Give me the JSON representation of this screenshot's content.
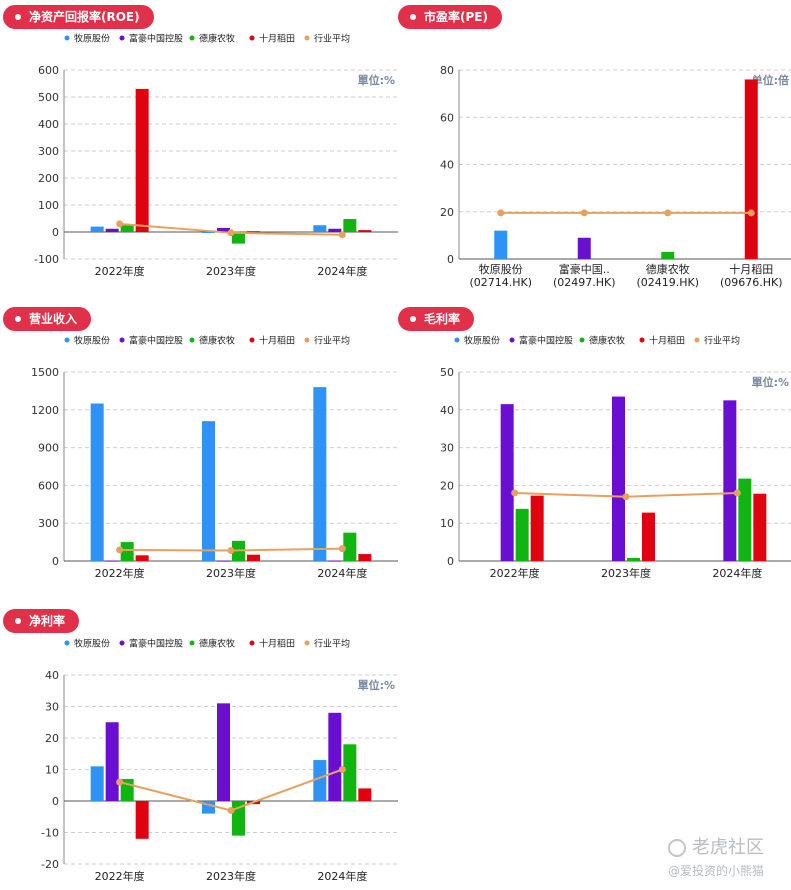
{
  "legend_items": [
    {
      "label": "牧原股份",
      "color": "#2e93f5"
    },
    {
      "label": "富豪中国控股",
      "color": "#6a0fd2"
    },
    {
      "label": "德康农牧",
      "color": "#11b511"
    },
    {
      "label": "十月稻田",
      "color": "#e0030f"
    },
    {
      "label": "行业平均",
      "color": "#e8a05e"
    }
  ],
  "unit_percent": "單位:%",
  "unit_times": "单位:倍",
  "watermark": {
    "brand": "老虎社区",
    "user": "@爱投资的小熊猫"
  },
  "chart_data": [
    {
      "id": "roe",
      "type": "bar",
      "title": "净资产回报率(ROE)",
      "categories": [
        "2022年度",
        "2023年度",
        "2024年度"
      ],
      "series": [
        {
          "name": "牧原股份",
          "values": [
            20,
            -2,
            25
          ]
        },
        {
          "name": "富豪中国控股",
          "values": [
            12,
            15,
            12
          ]
        },
        {
          "name": "德康农牧",
          "values": [
            25,
            -43,
            48
          ]
        },
        {
          "name": "十月稻田",
          "values": [
            530,
            3,
            7
          ]
        }
      ],
      "average": {
        "name": "行业平均",
        "values": [
          30,
          -3,
          -10
        ]
      },
      "ylim": [
        -100,
        600
      ],
      "yticks": [
        -100,
        0,
        100,
        200,
        300,
        400,
        500,
        600
      ],
      "unit": "單位:%",
      "legend": "top"
    },
    {
      "id": "pe",
      "type": "bar",
      "title": "市盈率(PE)",
      "categories": [
        {
          "name": "牧原股份",
          "code": "(02714.HK)"
        },
        {
          "name": "富豪中国..",
          "code": "(02497.HK)"
        },
        {
          "name": "德康农牧",
          "code": "(02419.HK)"
        },
        {
          "name": "十月稻田",
          "code": "(09676.HK)"
        }
      ],
      "values": [
        12,
        9,
        3,
        76
      ],
      "average": {
        "name": "行业平均",
        "values": [
          19.5,
          19.5,
          19.5,
          19.5
        ]
      },
      "ylim": [
        0,
        80
      ],
      "yticks": [
        0,
        20,
        40,
        60,
        80
      ],
      "unit": "单位:倍"
    },
    {
      "id": "revenue",
      "type": "bar",
      "title": "营业收入",
      "categories": [
        "2022年度",
        "2023年度",
        "2024年度"
      ],
      "series": [
        {
          "name": "牧原股份",
          "values": [
            1250,
            1110,
            1380
          ]
        },
        {
          "name": "富豪中国控股",
          "values": [
            3,
            3,
            3
          ]
        },
        {
          "name": "德康农牧",
          "values": [
            150,
            160,
            225
          ]
        },
        {
          "name": "十月稻田",
          "values": [
            45,
            50,
            55
          ]
        }
      ],
      "average": {
        "name": "行业平均",
        "values": [
          88,
          83,
          98
        ]
      },
      "ylim": [
        0,
        1500
      ],
      "yticks": [
        0,
        300,
        600,
        900,
        1200,
        1500
      ],
      "unit": "",
      "legend": "top"
    },
    {
      "id": "gross",
      "type": "bar",
      "title": "毛利率",
      "categories": [
        "2022年度",
        "2023年度",
        "2024年度"
      ],
      "series": [
        {
          "name": "牧原股份",
          "values": [
            0,
            0,
            0
          ]
        },
        {
          "name": "富豪中国控股",
          "values": [
            41.5,
            43.5,
            42.5
          ]
        },
        {
          "name": "德康农牧",
          "values": [
            13.8,
            0.8,
            21.8
          ]
        },
        {
          "name": "十月稻田",
          "values": [
            17.3,
            12.8,
            17.8
          ]
        }
      ],
      "average": {
        "name": "行业平均",
        "values": [
          18,
          17,
          18
        ]
      },
      "ylim": [
        0,
        50
      ],
      "yticks": [
        0,
        10,
        20,
        30,
        40,
        50
      ],
      "unit": "單位:%",
      "legend": "top"
    },
    {
      "id": "net",
      "type": "bar",
      "title": "净利率",
      "categories": [
        "2022年度",
        "2023年度",
        "2024年度"
      ],
      "series": [
        {
          "name": "牧原股份",
          "values": [
            11,
            -4,
            13
          ]
        },
        {
          "name": "富豪中国控股",
          "values": [
            25,
            31,
            28
          ]
        },
        {
          "name": "德康农牧",
          "values": [
            7,
            -11,
            18
          ]
        },
        {
          "name": "十月稻田",
          "values": [
            -12,
            -1,
            4
          ]
        }
      ],
      "average": {
        "name": "行业平均",
        "values": [
          6,
          -3,
          10
        ]
      },
      "ylim": [
        -20,
        40
      ],
      "yticks": [
        -20,
        -10,
        0,
        10,
        20,
        30,
        40
      ],
      "unit": "單位:%",
      "legend": "top"
    }
  ]
}
